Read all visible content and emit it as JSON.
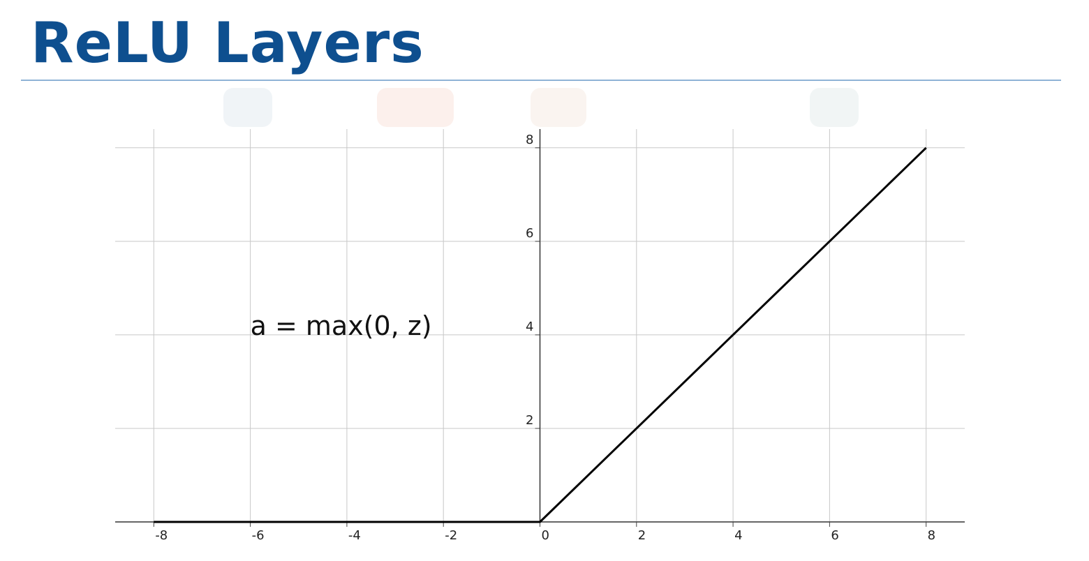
{
  "slide": {
    "title": "ReLU Layers"
  },
  "chart_data": {
    "type": "line",
    "x": [
      -8,
      0,
      8
    ],
    "series": [
      {
        "values": [
          0,
          0,
          8
        ],
        "color": "#000000"
      }
    ],
    "xlim": [
      -8.8,
      8.8
    ],
    "ylim": [
      0,
      8.4
    ],
    "xticks": [
      "-8",
      "-6",
      "-4",
      "-2",
      "0",
      "2",
      "4",
      "6",
      "8"
    ],
    "yticks": [
      "2",
      "4",
      "6",
      "8"
    ],
    "grid": true,
    "annotation": {
      "text": "a = max(0, z)",
      "x": -6,
      "y": 4
    },
    "title": "",
    "xlabel": "",
    "ylabel": ""
  }
}
